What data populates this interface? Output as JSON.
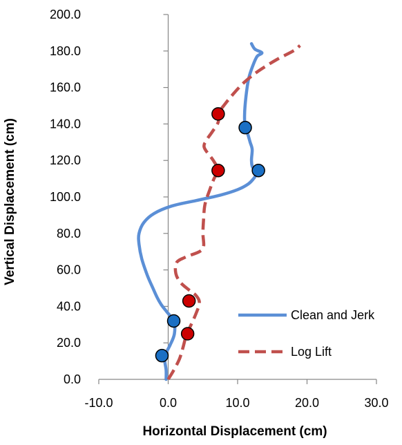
{
  "chart_data": {
    "type": "line",
    "xlabel": "Horizontal Displacement (cm)",
    "ylabel": "Vertical Displacement (cm)",
    "xlim": [
      -10.0,
      30.0
    ],
    "ylim": [
      0.0,
      200.0
    ],
    "x_ticks": [
      -10.0,
      0.0,
      10.0,
      20.0,
      30.0
    ],
    "y_ticks": [
      0.0,
      20.0,
      40.0,
      60.0,
      80.0,
      100.0,
      120.0,
      140.0,
      160.0,
      180.0,
      200.0
    ],
    "x_tick_labels": [
      "-10.0",
      "0.0",
      "10.0",
      "20.0",
      "30.0"
    ],
    "y_tick_labels": [
      "0.0",
      "20.0",
      "40.0",
      "60.0",
      "80.0",
      "100.0",
      "120.0",
      "140.0",
      "160.0",
      "180.0",
      "200.0"
    ],
    "grid": false,
    "legend_position": "right",
    "series": [
      {
        "name": "Clean and Jerk",
        "color": "#5b8fd6",
        "style": "solid",
        "marker_color": "#1a6fc4",
        "points": [
          [
            -0.3,
            0.0
          ],
          [
            -0.3,
            5.0
          ],
          [
            -0.5,
            10.0
          ],
          [
            -0.5,
            13.0
          ],
          [
            0.3,
            19.0
          ],
          [
            0.9,
            25.0
          ],
          [
            0.8,
            32.0
          ],
          [
            -0.2,
            37.0
          ],
          [
            -1.0,
            41.0
          ],
          [
            -1.6,
            45.0
          ],
          [
            -2.2,
            50.0
          ],
          [
            -3.0,
            57.0
          ],
          [
            -3.8,
            66.0
          ],
          [
            -4.2,
            74.0
          ],
          [
            -4.2,
            80.0
          ],
          [
            -3.5,
            86.0
          ],
          [
            -2.0,
            91.0
          ],
          [
            0.5,
            95.0
          ],
          [
            4.0,
            98.0
          ],
          [
            7.5,
            101.0
          ],
          [
            10.0,
            104.0
          ],
          [
            11.5,
            107.0
          ],
          [
            12.3,
            110.0
          ],
          [
            12.8,
            113.0
          ],
          [
            13.0,
            114.5
          ],
          [
            12.2,
            116.0
          ],
          [
            12.0,
            120.0
          ],
          [
            12.1,
            126.0
          ],
          [
            11.8,
            130.0
          ],
          [
            11.5,
            134.0
          ],
          [
            11.1,
            138.0
          ],
          [
            11.0,
            145.0
          ],
          [
            11.2,
            155.0
          ],
          [
            11.6,
            165.0
          ],
          [
            12.2,
            172.0
          ],
          [
            12.8,
            177.0
          ],
          [
            13.5,
            179.0
          ],
          [
            12.5,
            181.0
          ],
          [
            12.0,
            184.0
          ]
        ],
        "markers": [
          [
            -0.9,
            13.0
          ],
          [
            0.8,
            32.0
          ],
          [
            13.0,
            114.5
          ],
          [
            11.1,
            138.0
          ]
        ]
      },
      {
        "name": "Log Lift",
        "color": "#c0504d",
        "style": "dashed",
        "marker_color": "#cc0000",
        "points": [
          [
            0.0,
            0.0
          ],
          [
            0.8,
            5.0
          ],
          [
            1.6,
            11.0
          ],
          [
            2.1,
            17.0
          ],
          [
            2.6,
            24.0
          ],
          [
            3.3,
            30.0
          ],
          [
            4.0,
            36.0
          ],
          [
            4.5,
            42.0
          ],
          [
            4.0,
            46.0
          ],
          [
            3.0,
            49.0
          ],
          [
            1.8,
            53.0
          ],
          [
            1.1,
            58.0
          ],
          [
            1.2,
            64.0
          ],
          [
            2.5,
            67.0
          ],
          [
            4.5,
            70.0
          ],
          [
            5.1,
            73.0
          ],
          [
            5.0,
            80.0
          ],
          [
            5.1,
            88.0
          ],
          [
            5.3,
            96.0
          ],
          [
            6.0,
            104.0
          ],
          [
            6.6,
            110.0
          ],
          [
            7.2,
            114.5
          ],
          [
            6.5,
            120.0
          ],
          [
            5.2,
            127.0
          ],
          [
            5.5,
            131.0
          ],
          [
            6.4,
            136.0
          ],
          [
            7.2,
            141.0
          ],
          [
            7.3,
            146.0
          ],
          [
            8.2,
            151.0
          ],
          [
            9.5,
            157.0
          ],
          [
            11.0,
            163.0
          ],
          [
            13.0,
            169.0
          ],
          [
            15.5,
            175.0
          ],
          [
            18.0,
            180.0
          ],
          [
            19.0,
            183.0
          ]
        ],
        "markers": [
          [
            2.8,
            25.0
          ],
          [
            3.0,
            43.0
          ],
          [
            7.2,
            114.5
          ],
          [
            7.2,
            145.5
          ]
        ]
      }
    ]
  }
}
